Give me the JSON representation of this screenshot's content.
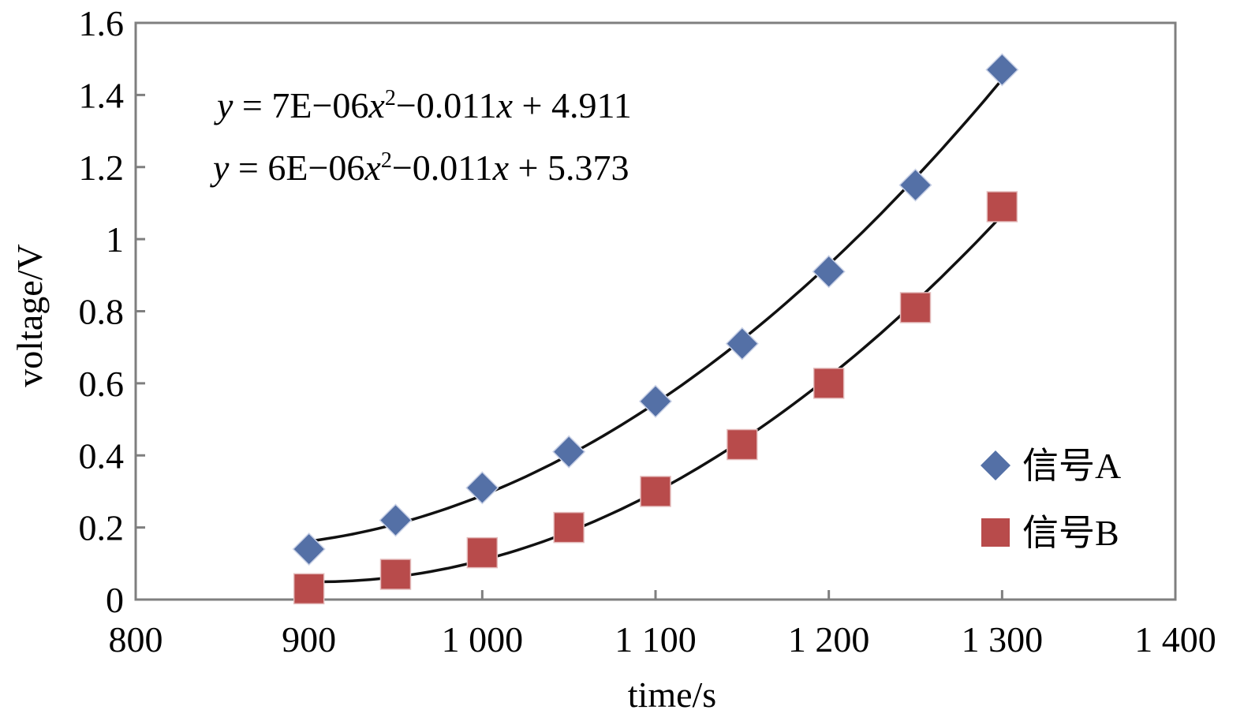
{
  "chart_data": {
    "type": "scatter",
    "xlabel": "time/s",
    "ylabel": "voltage/V",
    "xlim": [
      800,
      1400
    ],
    "ylim": [
      0,
      1.6
    ],
    "x_ticks": [
      800,
      900,
      1000,
      1100,
      1200,
      1300,
      1400
    ],
    "x_tick_labels": [
      "800",
      "900",
      "1 000",
      "1 100",
      "1 200",
      "1 300",
      "1 400"
    ],
    "y_ticks": [
      0,
      0.2,
      0.4,
      0.6,
      0.8,
      1,
      1.2,
      1.4,
      1.6
    ],
    "y_tick_labels": [
      "0",
      "0.2",
      "0.4",
      "0.6",
      "0.8",
      "1",
      "1.2",
      "1.4",
      "1.6"
    ],
    "grid": false,
    "legend_position": "bottom-right",
    "series": [
      {
        "name": "信号A",
        "marker": "diamond",
        "color": "#5470a6",
        "x": [
          900,
          950,
          1000,
          1050,
          1100,
          1150,
          1200,
          1250,
          1300
        ],
        "y": [
          0.14,
          0.22,
          0.31,
          0.41,
          0.55,
          0.71,
          0.91,
          1.15,
          1.47
        ],
        "trendline": {
          "type": "polynomial",
          "label_parts": [
            "y",
            " = 7E−06",
            "x",
            "2",
            "−0.011",
            "x",
            " + 4.911"
          ],
          "coefficients": [
            7e-06,
            -0.011,
            4.911
          ]
        }
      },
      {
        "name": "信号B",
        "marker": "square",
        "color": "#b84b4b",
        "x": [
          900,
          950,
          1000,
          1050,
          1100,
          1150,
          1200,
          1250,
          1300
        ],
        "y": [
          0.03,
          0.07,
          0.13,
          0.2,
          0.3,
          0.43,
          0.6,
          0.81,
          1.09
        ],
        "trendline": {
          "type": "polynomial",
          "label_parts": [
            "y",
            " = 6E−06",
            "x",
            "2",
            "−0.011",
            "x",
            " + 5.373"
          ],
          "coefficients": [
            6e-06,
            -0.011,
            5.373
          ]
        }
      }
    ]
  }
}
